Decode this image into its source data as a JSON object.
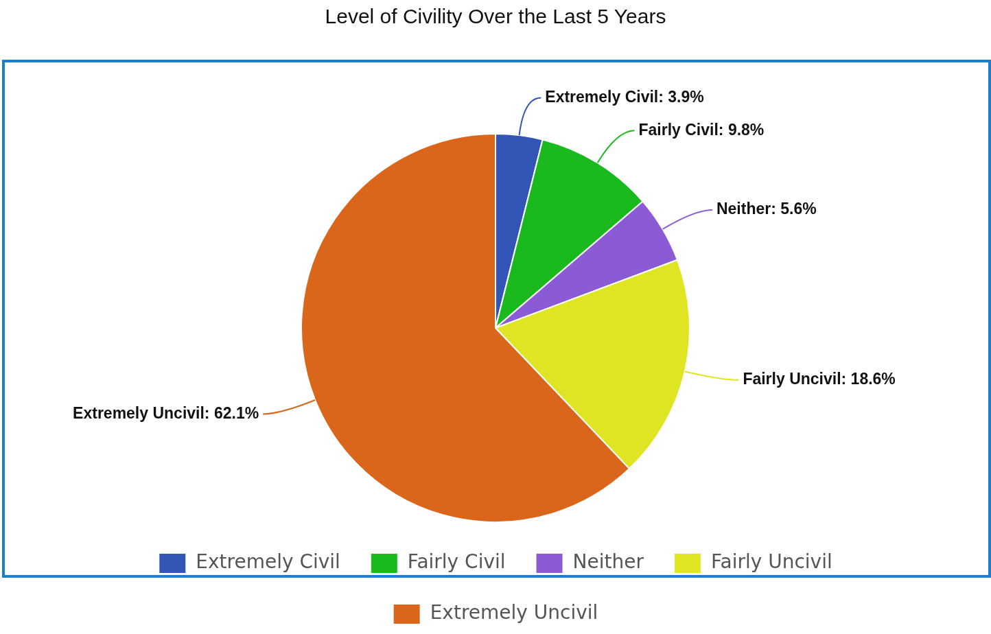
{
  "chart_data": {
    "type": "pie",
    "title": "Level of Civility Over the Last 5 Years",
    "categories": [
      "Extremely Civil",
      "Fairly Civil",
      "Neither",
      "Fairly Uncivil",
      "Extremely Uncivil"
    ],
    "values": [
      3.9,
      9.8,
      5.6,
      18.6,
      62.1
    ],
    "colors": [
      "#3355b5",
      "#1ab91e",
      "#8b5bd6",
      "#e0e523",
      "#d9661a"
    ],
    "value_labels": [
      "Extremely Civil: 3.9%",
      "Fairly Civil: 9.8%",
      "Neither: 5.6%",
      "Fairly Uncivil: 18.6%",
      "Extremely Uncivil: 62.1%"
    ],
    "legend": "bottom"
  }
}
